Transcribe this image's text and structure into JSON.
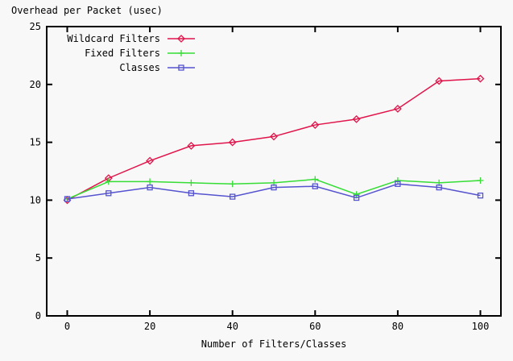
{
  "chart_data": {
    "type": "line",
    "title": "Overhead per Packet (usec)",
    "xlabel": "Number of Filters/Classes",
    "ylabel": "",
    "x": [
      0,
      10,
      20,
      30,
      40,
      50,
      60,
      70,
      80,
      90,
      100
    ],
    "series": [
      {
        "name": "Wildcard Filters",
        "color": "#e0144a",
        "marker": "diamond",
        "values": [
          10.0,
          11.9,
          13.4,
          14.7,
          15.0,
          15.5,
          16.5,
          17.0,
          17.9,
          20.3,
          20.5
        ]
      },
      {
        "name": "Fixed Filters",
        "color": "#35dd35",
        "marker": "plus",
        "values": [
          10.1,
          11.6,
          11.6,
          11.5,
          11.4,
          11.5,
          11.8,
          10.5,
          11.7,
          11.5,
          11.7
        ]
      },
      {
        "name": "Classes",
        "color": "#5553cf",
        "marker": "square",
        "values": [
          10.1,
          10.6,
          11.1,
          10.6,
          10.3,
          11.1,
          11.2,
          10.2,
          11.4,
          11.1,
          10.4
        ]
      }
    ],
    "xlim": [
      0,
      100
    ],
    "ylim": [
      0,
      25
    ],
    "xticks": [
      0,
      20,
      40,
      60,
      80,
      100
    ],
    "yticks": [
      0,
      5,
      10,
      15,
      20,
      25
    ],
    "legend_position": "top-left-inside",
    "grid": false,
    "background": "#f8f8f8",
    "axis_color": "#000000"
  }
}
